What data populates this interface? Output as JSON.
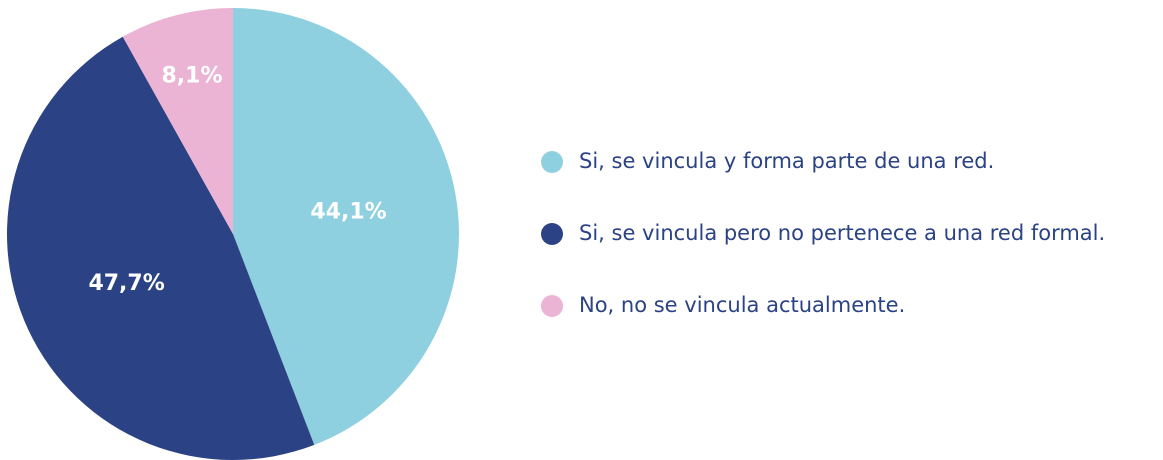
{
  "chart_data": {
    "type": "pie",
    "categories": [
      "Si, se vincula y forma parte de una red.",
      "Si, se vincula pero no pertenece a una red formal.",
      "No, no se vincula actualmente."
    ],
    "values": [
      44.1,
      47.7,
      8.1
    ],
    "value_labels": [
      "44,1%",
      "47,7%",
      "8,1%"
    ],
    "colors": [
      "#8ed0e0",
      "#2b4285",
      "#ebb3d4"
    ],
    "legend": "right"
  }
}
